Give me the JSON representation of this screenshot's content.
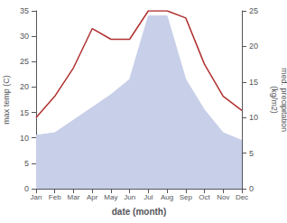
{
  "chart_data": {
    "type": "line",
    "xlabel": "date (month)",
    "ylabel": "max temp (C)",
    "y2label": "med. precipitation\n(kg/m2)",
    "categories": [
      "Jan",
      "Feb",
      "Mar",
      "Apr",
      "May",
      "Jun",
      "Jul",
      "Aug",
      "Sep",
      "Oct",
      "Nov",
      "Dec"
    ],
    "series": [
      {
        "type": "area",
        "color": "#c8cfe8",
        "values": [
          10.5,
          11.0,
          13.5,
          16.0,
          18.5,
          21.5,
          34.0,
          34.0,
          21.5,
          15.5,
          11.0,
          9.5
        ]
      },
      {
        "type": "line",
        "color": "#b03030",
        "axis": "y2",
        "values": [
          10.0,
          13.0,
          17.0,
          22.5,
          21.0,
          21.0,
          25.0,
          25.0,
          24.0,
          17.5,
          13.0,
          11.0
        ]
      }
    ],
    "ylim": [
      0,
      35
    ],
    "yticks": [
      0,
      5,
      10,
      15,
      20,
      25,
      30,
      35
    ],
    "y2lim": [
      0,
      25
    ],
    "y2ticks": [
      0,
      5,
      10,
      15,
      20,
      25
    ],
    "grid": false
  }
}
